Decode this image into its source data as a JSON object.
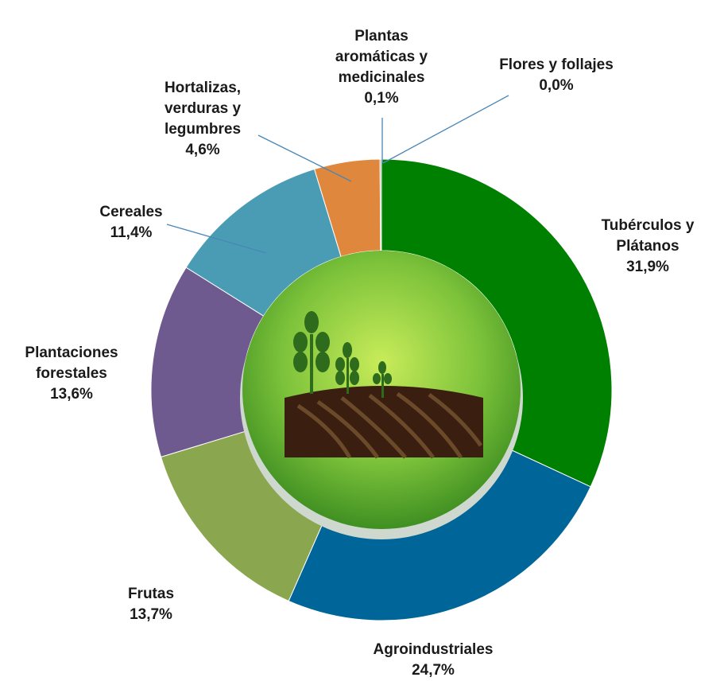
{
  "chart_data": {
    "type": "donut",
    "categories": [
      "Tubérculos y Plátanos",
      "Agroindustriales",
      "Frutas",
      "Plantaciones forestales",
      "Cereales",
      "Hortalizas, verduras y legumbres",
      "Plantas aromáticas y medicinales",
      "Flores y follajes"
    ],
    "values": [
      31.9,
      24.7,
      13.7,
      13.6,
      11.4,
      4.6,
      0.1,
      0.0
    ],
    "value_labels": [
      "31,9%",
      "24,7%",
      "13,7%",
      "13,6%",
      "11,4%",
      "4,6%",
      "0,1%",
      "0,0%"
    ],
    "colors": [
      "#008000",
      "#006699",
      "#8aa64e",
      "#6f5a8f",
      "#4a9cb5",
      "#e0873e",
      "#9a9a9a",
      "#7f7f7f"
    ]
  }
}
